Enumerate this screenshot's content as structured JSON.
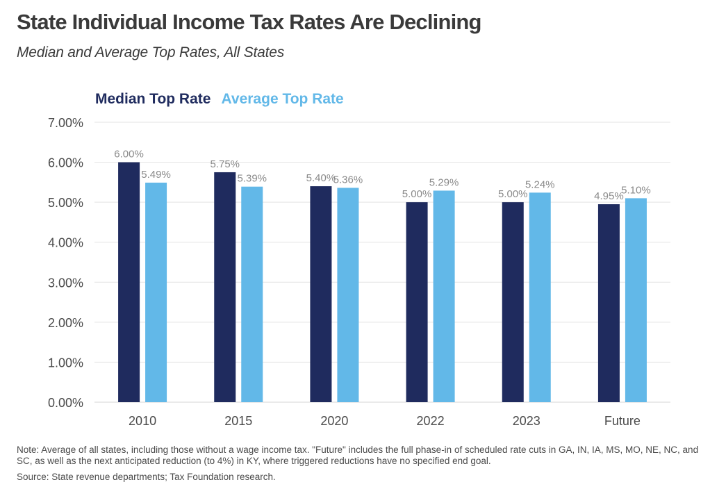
{
  "colors": {
    "median": "#1f2b5e",
    "average": "#62b8e8",
    "grid": "#e3e3e3",
    "axis_text": "#4a4a4a",
    "label_text": "#8a8a8a"
  },
  "chart_data": {
    "type": "bar",
    "title": "State Individual Income Tax Rates Are Declining",
    "subtitle": "Median and Average Top Rates, All States",
    "categories": [
      "2010",
      "2015",
      "2020",
      "2022",
      "2023",
      "Future"
    ],
    "series": [
      {
        "name": "Median Top Rate",
        "values": [
          6.0,
          5.75,
          5.4,
          5.0,
          5.0,
          4.95
        ],
        "labels": [
          "6.00%",
          "5.75%",
          "5.40%",
          "5.00%",
          "5.00%",
          "4.95%"
        ]
      },
      {
        "name": "Average Top Rate",
        "values": [
          5.49,
          5.39,
          5.36,
          5.29,
          5.24,
          5.1
        ],
        "labels": [
          "5.49%",
          "5.39%",
          "5.36%",
          "5.29%",
          "5.24%",
          "5.10%"
        ]
      }
    ],
    "xlabel": "",
    "ylabel": "",
    "ylim": [
      0,
      7
    ],
    "yticks": [
      "0.00%",
      "1.00%",
      "2.00%",
      "3.00%",
      "4.00%",
      "5.00%",
      "6.00%",
      "7.00%"
    ],
    "grid": true,
    "legend_placement": "top-left"
  },
  "footer": {
    "note": "Note: Average of all states, including those without a wage income tax. \"Future\" includes the full phase-in of scheduled rate cuts in GA, IN, IA, MS, MO, NE, NC, and SC, as well as the next anticipated reduction (to 4%) in KY, where triggered reductions have no specified end goal.",
    "source": "Source: State revenue departments; Tax Foundation research."
  }
}
